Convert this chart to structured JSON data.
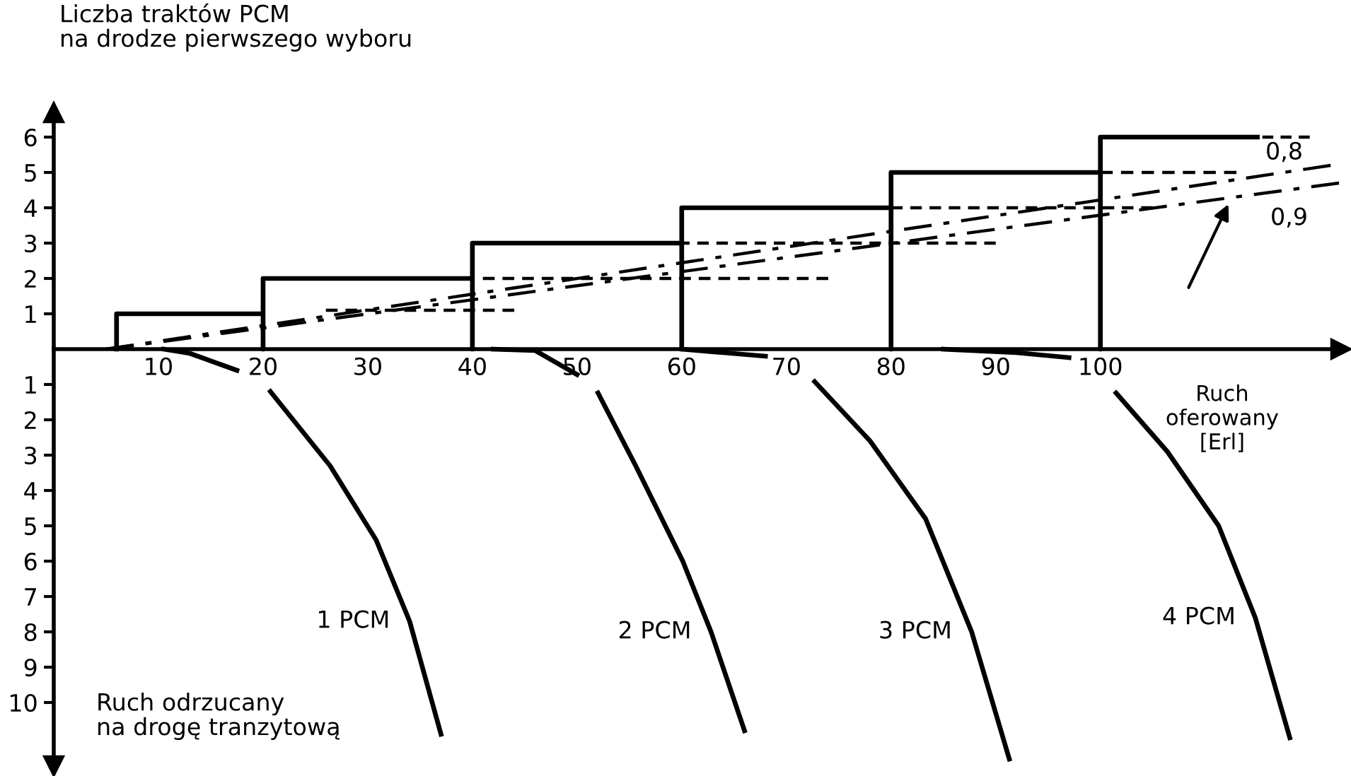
{
  "chart_data": {
    "type": "line",
    "ylabel": "Liczba traktów PCM\nna drodze pierwszego wyboru",
    "xlabel": "Ruch\noferowany\n[Erl]",
    "annotations": [
      "Ruch odrzucany\nna drogę tranzytową",
      {
        "text": "0,8",
        "x": 120,
        "y": 6
      },
      {
        "text": "0,9",
        "x": 112.4,
        "y": 4.2
      }
    ],
    "xlim": [
      0,
      123
    ],
    "ylim": [
      -11.8,
      6.7
    ],
    "xticks": [
      10,
      20,
      30,
      40,
      50,
      60,
      70,
      80,
      90,
      100
    ],
    "yticks": [
      {
        "value": -10,
        "label": "10"
      },
      {
        "value": -9,
        "label": "9"
      },
      {
        "value": -8,
        "label": "8"
      },
      {
        "value": -7,
        "label": "7"
      },
      {
        "value": -6,
        "label": "6"
      },
      {
        "value": -5,
        "label": "5"
      },
      {
        "value": -4,
        "label": "4"
      },
      {
        "value": -3,
        "label": "3"
      },
      {
        "value": -2,
        "label": "2"
      },
      {
        "value": -1,
        "label": "1"
      },
      1,
      2,
      3,
      4,
      5,
      6
    ],
    "grid": false,
    "legend": false,
    "marker": "none",
    "series": [
      {
        "color": "#000000",
        "line_style": "solid",
        "x": [
          6,
          6,
          20,
          20,
          20,
          40,
          40,
          40,
          60,
          60,
          60,
          80,
          80,
          80,
          100,
          100,
          100,
          115
        ],
        "values": [
          0,
          1,
          1,
          0,
          2,
          2,
          0,
          3,
          3,
          0,
          4,
          4,
          0,
          5,
          5,
          0,
          6,
          6
        ]
      },
      {
        "color": "#000000",
        "line_style": "dashed",
        "x": [
          26,
          44
        ],
        "values": [
          1.1,
          1.1
        ]
      },
      {
        "color": "#000000",
        "line_style": "dashed",
        "x": [
          41,
          74
        ],
        "values": [
          2,
          2
        ]
      },
      {
        "color": "#000000",
        "line_style": "dashed",
        "x": [
          56,
          90
        ],
        "values": [
          3,
          3
        ]
      },
      {
        "color": "#000000",
        "line_style": "dashed",
        "x": [
          80,
          105
        ],
        "values": [
          4,
          4
        ]
      },
      {
        "color": "#000000",
        "line_style": "dashed",
        "x": [
          100,
          113
        ],
        "values": [
          5,
          5
        ]
      },
      {
        "color": "#000000",
        "line_style": "dashed",
        "x": [
          112,
          120
        ],
        "values": [
          6,
          6
        ]
      },
      {
        "color": "#000000",
        "line_style": "dashdot",
        "x": [
          5,
          122
        ],
        "values": [
          0,
          5.2
        ]
      },
      {
        "color": "#000000",
        "line_style": "dashdot",
        "x": [
          5,
          122.8
        ],
        "values": [
          0,
          4.7
        ]
      },
      {
        "name": "1 PCM",
        "color": "#000000",
        "line_style": "solid",
        "x": [
          10.5,
          13,
          17.5,
          19,
          20.7,
          26.4,
          30.8,
          34,
          37
        ],
        "values": [
          0,
          -0.12,
          -0.6,
          null,
          -1.2,
          -3.3,
          -5.4,
          -7.7,
          -10.9
        ]
      },
      {
        "name": "2 PCM",
        "color": "#000000",
        "line_style": "solid",
        "x": [
          42,
          46,
          50,
          51,
          52,
          55.6,
          60.1,
          62.8,
          66
        ],
        "values": [
          0,
          -0.04,
          -0.72,
          null,
          -1.24,
          -3.3,
          -6.0,
          -8.0,
          -10.8
        ]
      },
      {
        "name": "3 PCM",
        "color": "#000000",
        "line_style": "solid",
        "x": [
          60,
          64,
          68,
          70,
          72.7,
          78,
          83.3,
          87.7,
          91.3
        ],
        "values": [
          0,
          -0.1,
          -0.2,
          null,
          -0.92,
          -2.6,
          -4.8,
          -8.0,
          -11.6
        ]
      },
      {
        "name": "4 PCM",
        "color": "#000000",
        "line_style": "solid",
        "x": [
          85,
          92,
          97,
          99,
          101.5,
          106.4,
          111.3,
          114.8,
          118.1
        ],
        "values": [
          0,
          -0.1,
          -0.24,
          null,
          -1.24,
          -2.9,
          -5.0,
          -7.6,
          -11.0
        ]
      }
    ]
  }
}
